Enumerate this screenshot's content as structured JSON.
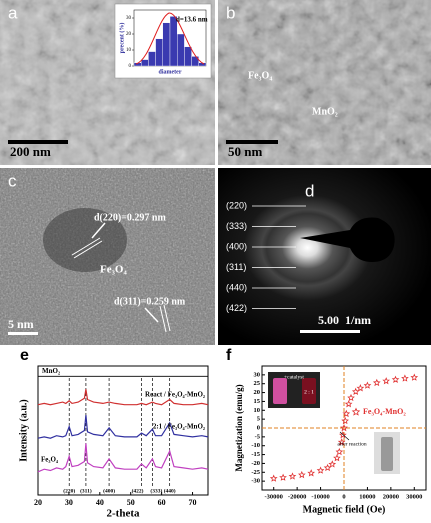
{
  "panels": {
    "a": {
      "letter": "a",
      "scale": "200 nm"
    },
    "b": {
      "letter": "b",
      "scale": "50 nm",
      "labels": [
        "Fe₃O₄",
        "MnO₂"
      ]
    },
    "c": {
      "letter": "c",
      "scale": "5 nm",
      "labels": [
        "d(220)=0.297 nm",
        "Fe₃O₄",
        "d(311)=0.259 nm"
      ]
    },
    "d": {
      "letter": "d",
      "scale": "5.00  1/nm",
      "rings": [
        "(220)",
        "(333)",
        "(400)",
        "(311)",
        "(440)",
        "(422)"
      ]
    },
    "e": {
      "letter": "e"
    },
    "f": {
      "letter": "f"
    }
  },
  "chart_data": [
    {
      "type": "histogram",
      "title": "d=13.6 nm",
      "xlabel": "diameter",
      "ylabel": "precent (%)",
      "bins": [
        9,
        10,
        11,
        12,
        13,
        14,
        15,
        16,
        17,
        18,
        19
      ],
      "values": [
        2,
        4,
        9,
        17,
        27,
        31,
        20,
        12,
        6,
        2
      ],
      "color": "#3a3ab0",
      "ylim": [
        0,
        35
      ],
      "yticks": [
        0,
        10,
        20,
        30
      ]
    },
    {
      "type": "line",
      "xlabel": "2-theta",
      "ylabel": "Intensity (a.u.)",
      "xlim": [
        20,
        75
      ],
      "xticks": [
        20,
        30,
        40,
        50,
        60,
        70
      ],
      "ylim": [
        0,
        100
      ],
      "x": [
        20,
        22,
        24,
        26,
        28,
        29,
        30.1,
        31,
        33,
        35,
        35.5,
        36,
        38,
        41,
        43,
        45,
        48,
        52,
        53.5,
        55,
        57,
        58,
        60,
        62.6,
        64,
        67,
        70,
        73,
        75
      ],
      "series": [
        {
          "name": "React / Fe₃O₄-MnO₂",
          "color": "#d03030",
          "values": [
            70,
            71,
            70,
            71,
            72,
            71,
            73,
            71,
            72,
            75,
            82,
            74,
            72,
            71,
            72,
            71,
            70,
            70,
            71,
            70,
            72,
            71,
            70,
            74,
            71,
            70,
            70,
            71,
            70
          ]
        },
        {
          "name": "2:1 / Fe₃O₄-MnO₂",
          "color": "#3030a0",
          "values": [
            44,
            45,
            44,
            46,
            45,
            46,
            53,
            46,
            47,
            50,
            62,
            49,
            47,
            46,
            52,
            46,
            45,
            45,
            48,
            46,
            51,
            46,
            46,
            56,
            47,
            46,
            45,
            46,
            45
          ]
        },
        {
          "name": "Fe₃O₄",
          "color": "#c040c0",
          "values": [
            18,
            20,
            19,
            21,
            20,
            22,
            30,
            22,
            23,
            26,
            40,
            25,
            22,
            21,
            28,
            21,
            20,
            20,
            24,
            21,
            28,
            22,
            21,
            34,
            22,
            21,
            20,
            21,
            20
          ]
        }
      ],
      "annotations": [
        {
          "label": "(220)",
          "x": 30.1
        },
        {
          "label": "(311)",
          "x": 35.5
        },
        {
          "label": "(400)",
          "x": 43
        },
        {
          "label": "(422)",
          "x": 53.5
        },
        {
          "label": "(333)",
          "x": 57
        },
        {
          "label": "(440)",
          "x": 62.6
        }
      ],
      "reference": {
        "label": "MnO₂",
        "y": 92
      }
    },
    {
      "type": "scatter",
      "xlabel": "Magnetic field (Oe)",
      "ylabel": "Magnetization (emu/g)",
      "xlim": [
        -35000,
        35000
      ],
      "xticks": [
        -30000,
        -20000,
        -10000,
        0,
        10000,
        20000,
        30000
      ],
      "ylim": [
        -35,
        35
      ],
      "yticks": [
        -30,
        -25,
        -20,
        -15,
        -10,
        -5,
        0,
        5,
        10,
        15,
        20,
        25,
        30
      ],
      "x": [
        -30000,
        -26000,
        -22000,
        -18000,
        -14000,
        -10000,
        -7000,
        -5000,
        -3000,
        -2000,
        -1000,
        -500,
        0,
        500,
        1000,
        2000,
        3000,
        5000,
        7000,
        10000,
        14000,
        18000,
        22000,
        26000,
        30000
      ],
      "series": [
        {
          "name": "Fe₃O₄-MnO₂",
          "color": "#e03030",
          "values": [
            -28.5,
            -28,
            -27.3,
            -26.5,
            -25.5,
            -24,
            -22.5,
            -20.5,
            -17,
            -13.5,
            -8,
            -4,
            0,
            4,
            8,
            13.5,
            17,
            20.5,
            22.5,
            24,
            25.5,
            26.5,
            27.3,
            28,
            28.5
          ]
        }
      ],
      "annotations": [
        "+catalyst",
        "2 : 1",
        "after reaction"
      ]
    }
  ]
}
